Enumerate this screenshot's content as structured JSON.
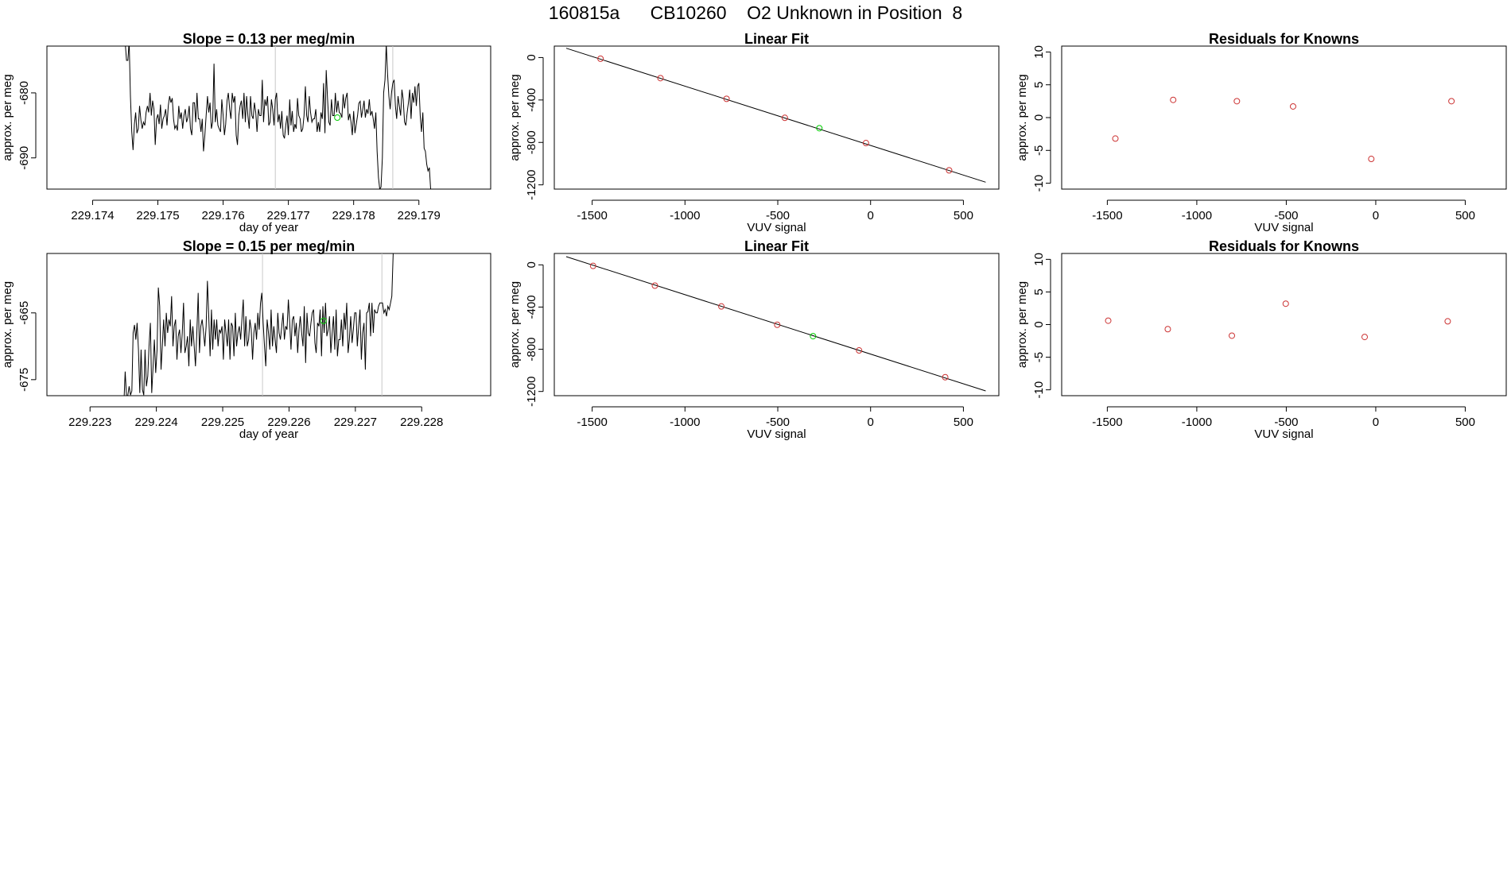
{
  "figure": {
    "title": "160815a      CB10260    O2 Unknown in Position  8"
  },
  "chart_data": [
    {
      "type": "line",
      "title": "Slope =  0.13  per meg/min",
      "xlabel": "day of year",
      "ylabel": "approx. per meg",
      "xlim": [
        229.1733,
        229.1801
      ],
      "ylim": [
        -694.8,
        -672.8
      ],
      "xticks": [
        "229.174",
        "229.175",
        "229.176",
        "229.177",
        "229.178",
        "229.179"
      ],
      "yticks": [
        "-680",
        "-690"
      ],
      "vlines_x": [
        229.1768,
        229.1786
      ],
      "series": [
        {
          "x_start": 229.1745,
          "x_step": 2e-05,
          "values": [
            -672.4,
            -675,
            -675,
            -672,
            -680.5,
            -686,
            -688.8,
            -684.8,
            -683,
            -686.2,
            -685.5,
            -682,
            -684.2,
            -685.5,
            -684.5,
            -685,
            -683,
            -682,
            -683,
            -680,
            -683.5,
            -681.2,
            -682.5,
            -688,
            -684,
            -683.3,
            -684.8,
            -681.8,
            -685.5,
            -684,
            -683.5,
            -682.5,
            -685,
            -682,
            -680.5,
            -681.5,
            -680.8,
            -684,
            -685.5,
            -685,
            -685.8,
            -682,
            -684,
            -683,
            -685.5,
            -683.5,
            -682.5,
            -684.5,
            -683.8,
            -682,
            -685.5,
            -686.5,
            -681.5,
            -681.5,
            -684.5,
            -680,
            -684,
            -684,
            -686,
            -684,
            -689,
            -686.5,
            -683.5,
            -680.5,
            -683,
            -681.5,
            -685.5,
            -684.5,
            -675.5,
            -684.5,
            -682.5,
            -685,
            -685.5,
            -686,
            -681,
            -683.5,
            -686.5,
            -684.8,
            -681.2,
            -680,
            -682.5,
            -684,
            -680,
            -681.5,
            -680.5,
            -686.5,
            -688,
            -683.5,
            -682,
            -681.2,
            -684,
            -680,
            -684.5,
            -680.5,
            -683.5,
            -685.5,
            -680.5,
            -683.5,
            -684,
            -681.5,
            -683,
            -686,
            -682.5,
            -683.5,
            -683.5,
            -678,
            -684.5,
            -681,
            -682,
            -680.5,
            -685,
            -684.5,
            -681,
            -682.5,
            -685,
            -681,
            -680,
            -684.5,
            -683.3,
            -685.5,
            -682.8,
            -686.5,
            -687,
            -685,
            -683.5,
            -686.5,
            -681,
            -685,
            -682.8,
            -686,
            -684.8,
            -685.5,
            -680.8,
            -683.5,
            -684,
            -686,
            -685.5,
            -683.5,
            -679,
            -683.5,
            -684.5,
            -680.5,
            -683,
            -684.5,
            -684,
            -684,
            -682.5,
            -686,
            -684.5,
            -686,
            -683,
            -684,
            -678.5,
            -686.2,
            -676.5,
            -681,
            -684.5,
            -685,
            -681,
            -683.5,
            -683.5,
            -680,
            -683,
            -681.2,
            -683,
            -683.2,
            -683.8,
            -680.2,
            -682.4,
            -680.8,
            -680,
            -684.2,
            -683.2,
            -684.5,
            -686.5,
            -682.8,
            -686.2,
            -684.8,
            -683.5,
            -681.6,
            -681.3,
            -683.8,
            -682.5,
            -681.2,
            -683.8,
            -682.5,
            -683.2,
            -681,
            -683.5,
            -682.8,
            -684,
            -685.5,
            -683,
            -689,
            -693,
            -694.8,
            -694.5,
            -690,
            -680,
            -678,
            -672.5,
            -677,
            -680.5,
            -682.5,
            -680,
            -678.5,
            -678,
            -682,
            -684,
            -680.5,
            -682,
            -683.5,
            -679.5,
            -681,
            -684.5,
            -685,
            -683,
            -681.5,
            -679.5,
            -684,
            -680,
            -681.5,
            -679,
            -682,
            -679,
            -678.5,
            -683.5,
            -686,
            -683,
            -688.5,
            -689,
            -691,
            -692,
            -691.5,
            -694.8
          ]
        }
      ],
      "points": [
        {
          "x": 229.17775,
          "y": -683.8,
          "color": "#00cc00",
          "marker": "circle"
        }
      ]
    },
    {
      "type": "scatter",
      "title": "Linear Fit",
      "xlabel": "VUV signal",
      "ylabel": "approx. per meg",
      "xlim": [
        -1704,
        691
      ],
      "ylim": [
        -1240,
        108
      ],
      "xticks": [
        -1500,
        -1000,
        -500,
        0,
        500
      ],
      "yticks": [
        0,
        -400,
        -800,
        -1200
      ],
      "fit_line": {
        "x": [
          -1640,
          620
        ],
        "y": [
          88,
          -1175
        ]
      },
      "series": [
        {
          "name": "",
          "color": "#cc3333",
          "points": [
            [
              -1455,
              -11
            ],
            [
              -1132,
              -194
            ],
            [
              -776,
              -389
            ],
            [
              -462,
              -568
            ],
            [
              -25,
              -806
            ],
            [
              423,
              -1063
            ]
          ]
        },
        {
          "name": "",
          "color": "#00cc00",
          "points": [
            [
              -276,
              -666
            ]
          ]
        }
      ]
    },
    {
      "type": "scatter",
      "title": "Residuals for Knowns",
      "xlabel": "VUV signal",
      "ylabel": "approx. per meg",
      "xlim": [
        -1755,
        729
      ],
      "ylim": [
        -10.9,
        10.9
      ],
      "xticks": [
        -1500,
        -1000,
        -500,
        0,
        500
      ],
      "yticks": [
        10,
        5,
        0,
        -5,
        -10
      ],
      "series": [
        {
          "name": "",
          "color": "#cc3333",
          "points": [
            [
              -1455,
              -3.2
            ],
            [
              -1132,
              2.7
            ],
            [
              -776,
              2.5
            ],
            [
              -462,
              1.7
            ],
            [
              -25,
              -6.3
            ],
            [
              423,
              2.5
            ]
          ]
        }
      ]
    },
    {
      "type": "line",
      "title": "Slope =  0.15  per meg/min",
      "xlabel": "day of year",
      "ylabel": "approx. per meg",
      "xlim": [
        229.22235,
        229.22904
      ],
      "ylim": [
        -677.4,
        -656.1
      ],
      "xticks": [
        "229.223",
        "229.224",
        "229.225",
        "229.226",
        "229.227",
        "229.228"
      ],
      "yticks": [
        "-665",
        "-675"
      ],
      "vlines_x": [
        229.2256,
        229.2274
      ],
      "series": [
        {
          "x_start": 229.22311,
          "x_step": 2e-05,
          "values": [
            -677.4,
            -677.4,
            -677.4,
            -677.4,
            -677.4,
            -677.4,
            -677.4,
            -677.4,
            -677.4,
            -677.4,
            -677.4,
            -677.4,
            -677.4,
            -677.4,
            -677.4,
            -677.4,
            -677.4,
            -677.4,
            -677.4,
            -677.4,
            -678.5,
            -673.8,
            -677.5,
            -677.3,
            -676,
            -677.3,
            -676.7,
            -668,
            -666.8,
            -669,
            -666.5,
            -670.5,
            -677,
            -670.5,
            -676.5,
            -677.3,
            -670.5,
            -676,
            -674.5,
            -670,
            -666.5,
            -677,
            -673,
            -669,
            -674,
            -670.5,
            -661.2,
            -664,
            -673.5,
            -670,
            -666,
            -670,
            -665,
            -668,
            -666,
            -667,
            -662.5,
            -670,
            -667,
            -666,
            -672,
            -668.5,
            -667.5,
            -671,
            -668,
            -663.5,
            -671,
            -670,
            -668.5,
            -673,
            -666,
            -670,
            -667,
            -670,
            -673,
            -668,
            -662,
            -671,
            -667,
            -666,
            -667.8,
            -670,
            -667,
            -660.2,
            -665.5,
            -671.5,
            -664.5,
            -670.5,
            -666,
            -669,
            -666,
            -670,
            -667.5,
            -668,
            -667,
            -672,
            -666,
            -668,
            -670,
            -666,
            -672,
            -666.5,
            -667,
            -671.5,
            -665,
            -670,
            -668,
            -667,
            -669,
            -666,
            -663,
            -670,
            -665.5,
            -670,
            -669,
            -666,
            -667.5,
            -672,
            -668,
            -666.5,
            -669,
            -665,
            -667.5,
            -663.5,
            -662,
            -666.5,
            -670,
            -673,
            -666,
            -668,
            -670.5,
            -664.5,
            -670,
            -667,
            -669,
            -671,
            -665,
            -668,
            -669,
            -667,
            -665,
            -669,
            -667,
            -667.5,
            -663,
            -666.5,
            -670.5,
            -666,
            -665.5,
            -668.5,
            -666.5,
            -671,
            -667.5,
            -665.5,
            -668,
            -670,
            -664,
            -672.5,
            -665,
            -668,
            -668.5,
            -666.5,
            -665,
            -664.5,
            -669.5,
            -671,
            -666.5,
            -667,
            -664.5,
            -671.5,
            -664,
            -668,
            -663.5,
            -668.5,
            -667.5,
            -665.5,
            -671,
            -668,
            -665.5,
            -670.5,
            -664.5,
            -671.5,
            -669,
            -669,
            -666,
            -670,
            -665,
            -667.5,
            -663.5,
            -671,
            -669,
            -665.5,
            -669.5,
            -667.5,
            -665,
            -665,
            -670,
            -667,
            -664.5,
            -672,
            -668,
            -666.5,
            -673.5,
            -665,
            -664.8,
            -663.5,
            -668.5,
            -663.5,
            -668,
            -664.5,
            -665,
            -665,
            -664,
            -663.5,
            -663.5,
            -663.5,
            -665,
            -664.5,
            -665.5,
            -664,
            -664.5,
            -663.5,
            -662.5,
            -656.1
          ]
        }
      ],
      "points": [
        {
          "x": 229.22652,
          "y": -666.2,
          "color": "#00cc00",
          "marker": "circle"
        }
      ]
    },
    {
      "type": "scatter",
      "title": "Linear Fit",
      "xlabel": "VUV signal",
      "ylabel": "approx. per meg",
      "xlim": [
        -1704,
        691
      ],
      "ylim": [
        -1240,
        108
      ],
      "xticks": [
        -1500,
        -1000,
        -500,
        0,
        500
      ],
      "yticks": [
        0,
        -400,
        -800,
        -1200
      ],
      "fit_line": {
        "x": [
          -1640,
          620
        ],
        "y": [
          78,
          -1195
        ]
      },
      "series": [
        {
          "name": "",
          "color": "#cc3333",
          "points": [
            [
              -1495,
              -10
            ],
            [
              -1162,
              -197
            ],
            [
              -804,
              -394
            ],
            [
              -503,
              -568
            ],
            [
              -62,
              -811
            ],
            [
              402,
              -1065
            ]
          ]
        },
        {
          "name": "",
          "color": "#00cc00",
          "points": [
            [
              -310,
              -676
            ]
          ]
        }
      ]
    },
    {
      "type": "scatter",
      "title": "Residuals for Knowns",
      "xlabel": "VUV signal",
      "ylabel": "approx. per meg",
      "xlim": [
        -1755,
        729
      ],
      "ylim": [
        -10.9,
        10.9
      ],
      "xticks": [
        -1500,
        -1000,
        -500,
        0,
        500
      ],
      "yticks": [
        10,
        5,
        0,
        -5,
        -10
      ],
      "series": [
        {
          "name": "",
          "color": "#cc3333",
          "points": [
            [
              -1495,
              0.6
            ],
            [
              -1162,
              -0.7
            ],
            [
              -804,
              -1.7
            ],
            [
              -503,
              3.2
            ],
            [
              -62,
              -1.9
            ],
            [
              402,
              0.5
            ]
          ]
        }
      ]
    }
  ]
}
